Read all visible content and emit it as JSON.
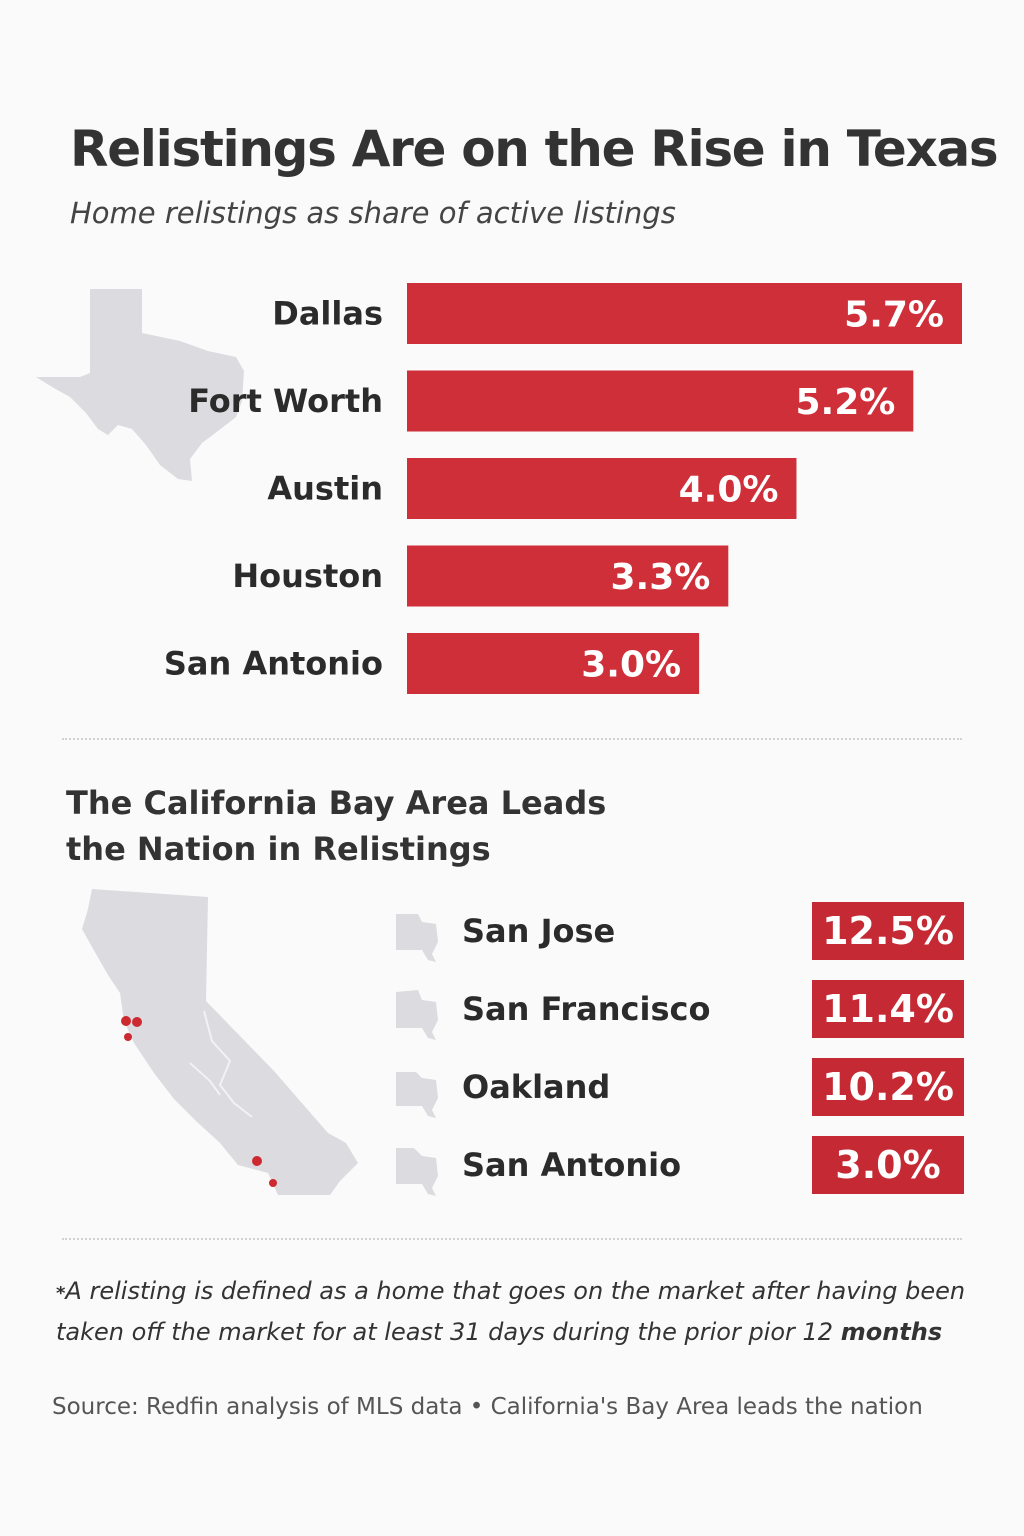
{
  "title": "Relistings Are on the Rise in Texas",
  "subtitle": "Home relistings as share of active listings",
  "colors": {
    "bar": "#cf2f38",
    "bar_dark": "#c52a34",
    "map": "#dcdce0",
    "dot": "#cc2a30"
  },
  "chart_data": [
    {
      "type": "bar",
      "orientation": "horizontal",
      "title": "Relistings Are on the Rise in Texas",
      "subtitle": "Home relistings as share of active listings",
      "categories": [
        "Dallas",
        "Fort Worth",
        "Austin",
        "Houston",
        "San Antonio"
      ],
      "values": [
        5.7,
        5.2,
        4.0,
        3.3,
        3.0
      ],
      "value_labels": [
        "5.7%",
        "5.2%",
        "4.0%",
        "3.3%",
        "3.0%"
      ],
      "unit": "%",
      "grid": false,
      "legend": "none"
    },
    {
      "type": "table",
      "title": "The California Bay Area Leads the Nation in Relistings",
      "categories": [
        "San Jose",
        "San Francisco",
        "Oakland",
        "San Antonio"
      ],
      "values": [
        12.5,
        11.4,
        10.2,
        3.0
      ],
      "value_labels": [
        "12.5%",
        "11.4%",
        "10.2%",
        "3.0%"
      ],
      "unit": "%"
    }
  ],
  "section2": {
    "title": "The California Bay Area Leads the Nation in Relistings"
  },
  "footnote": {
    "marker": "*",
    "text": "A relisting is defined as a home that goes on the market after having been taken off the market for at least 31 days during the prior pior 12 ",
    "emphasis": "months"
  },
  "source": "Source: Redfin analysis of MLS data  •  California's Bay Area leads the nation",
  "icons": [
    "texas-map-icon",
    "california-map-icon",
    "city-silhouette-icon"
  ]
}
